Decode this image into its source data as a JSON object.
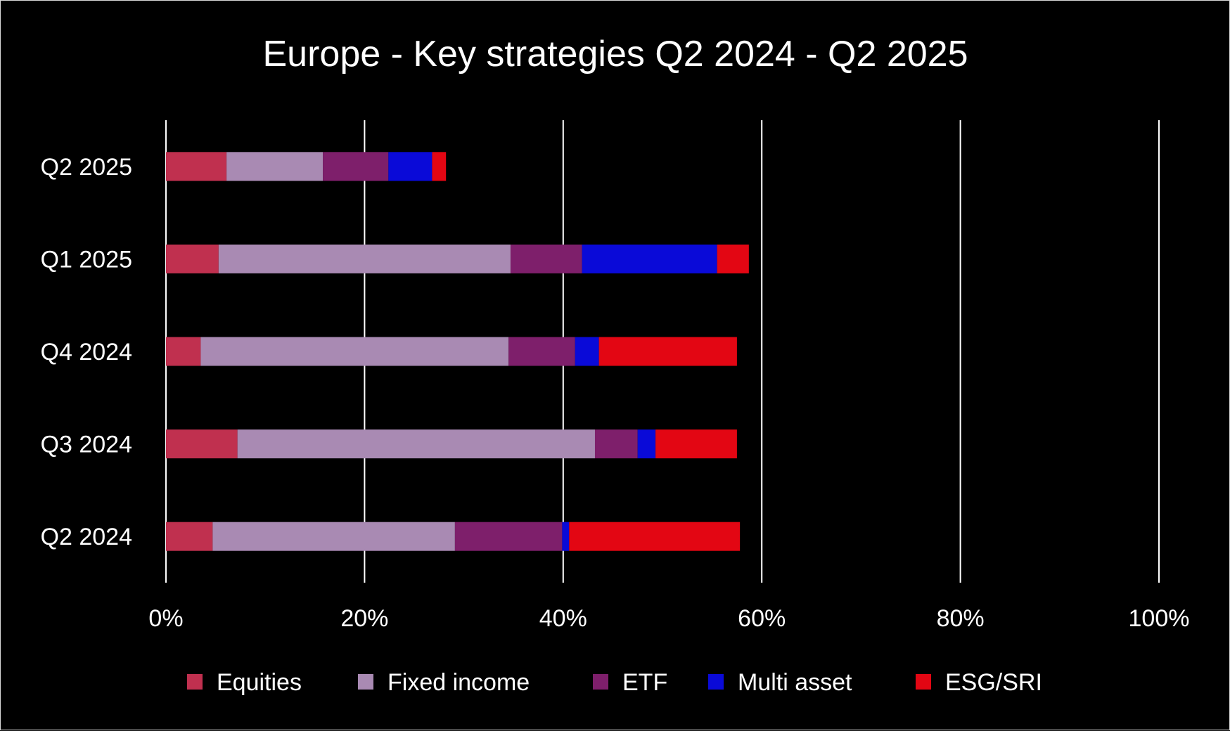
{
  "chart_data": {
    "type": "bar",
    "orientation": "horizontal",
    "stacked": true,
    "title": "Europe - Key strategies Q2 2024 - Q2 2025",
    "xlabel": "",
    "ylabel": "",
    "xlim": [
      0,
      100
    ],
    "x_ticks": [
      "0%",
      "20%",
      "40%",
      "60%",
      "80%",
      "100%"
    ],
    "grid": "vertical",
    "legend_position": "bottom",
    "categories": [
      "Q2 2025",
      "Q1 2025",
      "Q4 2024",
      "Q3 2024",
      "Q2 2024"
    ],
    "series": [
      {
        "name": "Equities",
        "color": "#c0304f",
        "values": [
          6.1,
          5.3,
          3.5,
          7.2,
          4.7
        ]
      },
      {
        "name": "Fixed income",
        "color": "#a98ab3",
        "values": [
          9.7,
          29.4,
          31.0,
          36.0,
          24.4
        ]
      },
      {
        "name": "ETF",
        "color": "#7e1f6b",
        "values": [
          6.6,
          7.2,
          6.7,
          4.3,
          10.8
        ]
      },
      {
        "name": "Multi asset",
        "color": "#0a0ad8",
        "values": [
          4.4,
          13.6,
          2.4,
          1.8,
          0.7
        ]
      },
      {
        "name": "ESG/SRI",
        "color": "#e30613",
        "values": [
          1.4,
          3.2,
          13.9,
          8.2,
          17.2
        ]
      }
    ]
  }
}
